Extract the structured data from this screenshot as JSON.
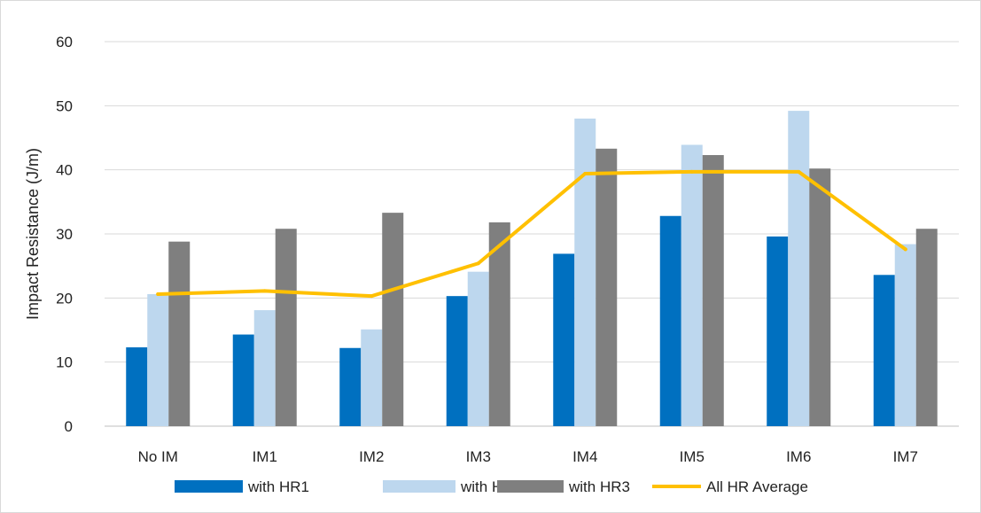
{
  "chart_data": {
    "type": "bar",
    "title": "",
    "xlabel": "",
    "ylabel": "Impact Resistance (J/m)",
    "ylim": [
      0,
      60
    ],
    "yticks": [
      0,
      10,
      20,
      30,
      40,
      50,
      60
    ],
    "grid": true,
    "legend_position": "bottom",
    "categories": [
      "No IM",
      "IM1",
      "IM2",
      "IM3",
      "IM4",
      "IM5",
      "IM6",
      "IM7"
    ],
    "series": [
      {
        "name": "with HR1",
        "type": "bar",
        "color": "#0070C0",
        "values": [
          12.3,
          14.3,
          12.2,
          20.3,
          26.9,
          32.8,
          29.6,
          23.6
        ]
      },
      {
        "name": "with HR2",
        "type": "bar",
        "color": "#BDD7EE",
        "values": [
          20.6,
          18.1,
          15.1,
          24.1,
          48.0,
          43.9,
          49.2,
          28.4
        ]
      },
      {
        "name": "with HR3",
        "type": "bar",
        "color": "#7F7F7F",
        "values": [
          28.8,
          30.8,
          33.3,
          31.8,
          43.3,
          42.3,
          40.2,
          30.8
        ]
      },
      {
        "name": "All HR Average",
        "type": "line",
        "color": "#FFC000",
        "values": [
          20.6,
          21.1,
          20.3,
          25.4,
          39.4,
          39.7,
          39.7,
          27.6
        ]
      }
    ]
  }
}
